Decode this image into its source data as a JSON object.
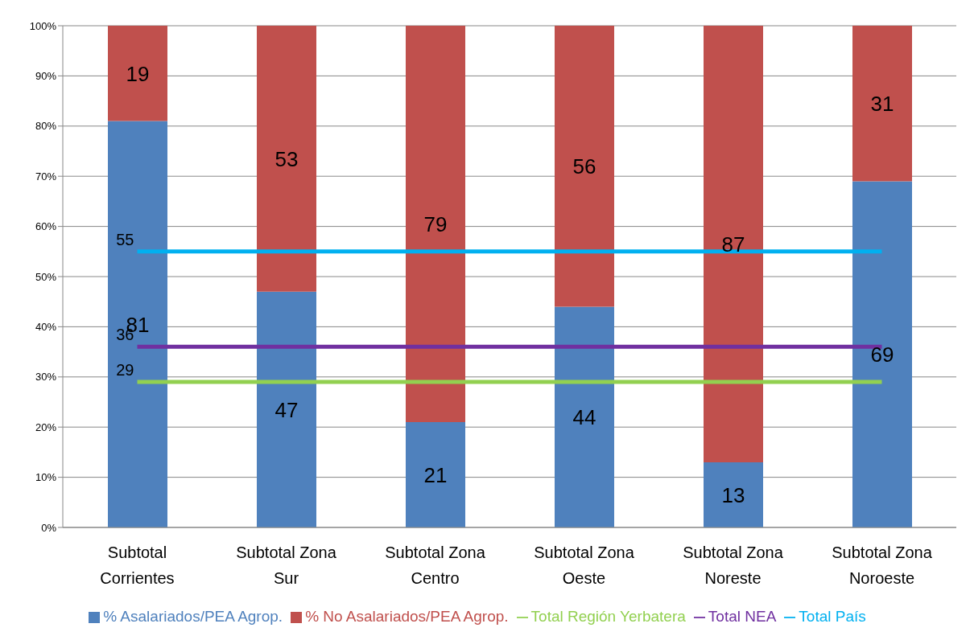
{
  "chart_data": {
    "type": "bar",
    "stacked": true,
    "categories": [
      "Subtotal Corrientes",
      "Subtotal Zona Sur",
      "Subtotal Zona Centro",
      "Subtotal Zona Oeste",
      "Subtotal Zona Noreste",
      "Subtotal Zona Noroeste"
    ],
    "series": [
      {
        "name": "% Asalariados/PEA Agrop.",
        "color": "#4f81bd",
        "values": [
          81,
          47,
          21,
          44,
          13,
          69
        ]
      },
      {
        "name": "% No Asalariados/PEA Agrop.",
        "color": "#c0504d",
        "values": [
          19,
          53,
          79,
          56,
          87,
          31
        ]
      },
      {
        "name": "Total Región Yerbatera",
        "type": "line",
        "color": "#92d050",
        "values": [
          29,
          29,
          29,
          29,
          29,
          29
        ],
        "value_labels": [
          "29",
          null,
          null,
          null,
          null,
          null
        ]
      },
      {
        "name": "Total NEA",
        "type": "line",
        "color": "#7030a0",
        "values": [
          36,
          36,
          36,
          36,
          36,
          36
        ],
        "value_labels": [
          "36",
          null,
          null,
          null,
          null,
          null
        ]
      },
      {
        "name": "Total País",
        "type": "line",
        "color": "#00b0f0",
        "values": [
          55,
          55,
          55,
          55,
          55,
          55
        ],
        "value_labels": [
          "55",
          null,
          null,
          null,
          null,
          null
        ]
      }
    ],
    "data_labels": true,
    "ylim": [
      0,
      100
    ],
    "yticks": [
      {
        "value": 0,
        "label": "0%"
      },
      {
        "value": 10,
        "label": "10%"
      },
      {
        "value": 20,
        "label": "20%"
      },
      {
        "value": 30,
        "label": "30%"
      },
      {
        "value": 40,
        "label": "40%"
      },
      {
        "value": 50,
        "label": "50%"
      },
      {
        "value": 60,
        "label": "60%"
      },
      {
        "value": 70,
        "label": "70%"
      },
      {
        "value": 80,
        "label": "80%"
      },
      {
        "value": 90,
        "label": "90%"
      },
      {
        "value": 100,
        "label": "100%"
      }
    ],
    "grid": "y",
    "legend": "bottom",
    "marker": "none"
  }
}
